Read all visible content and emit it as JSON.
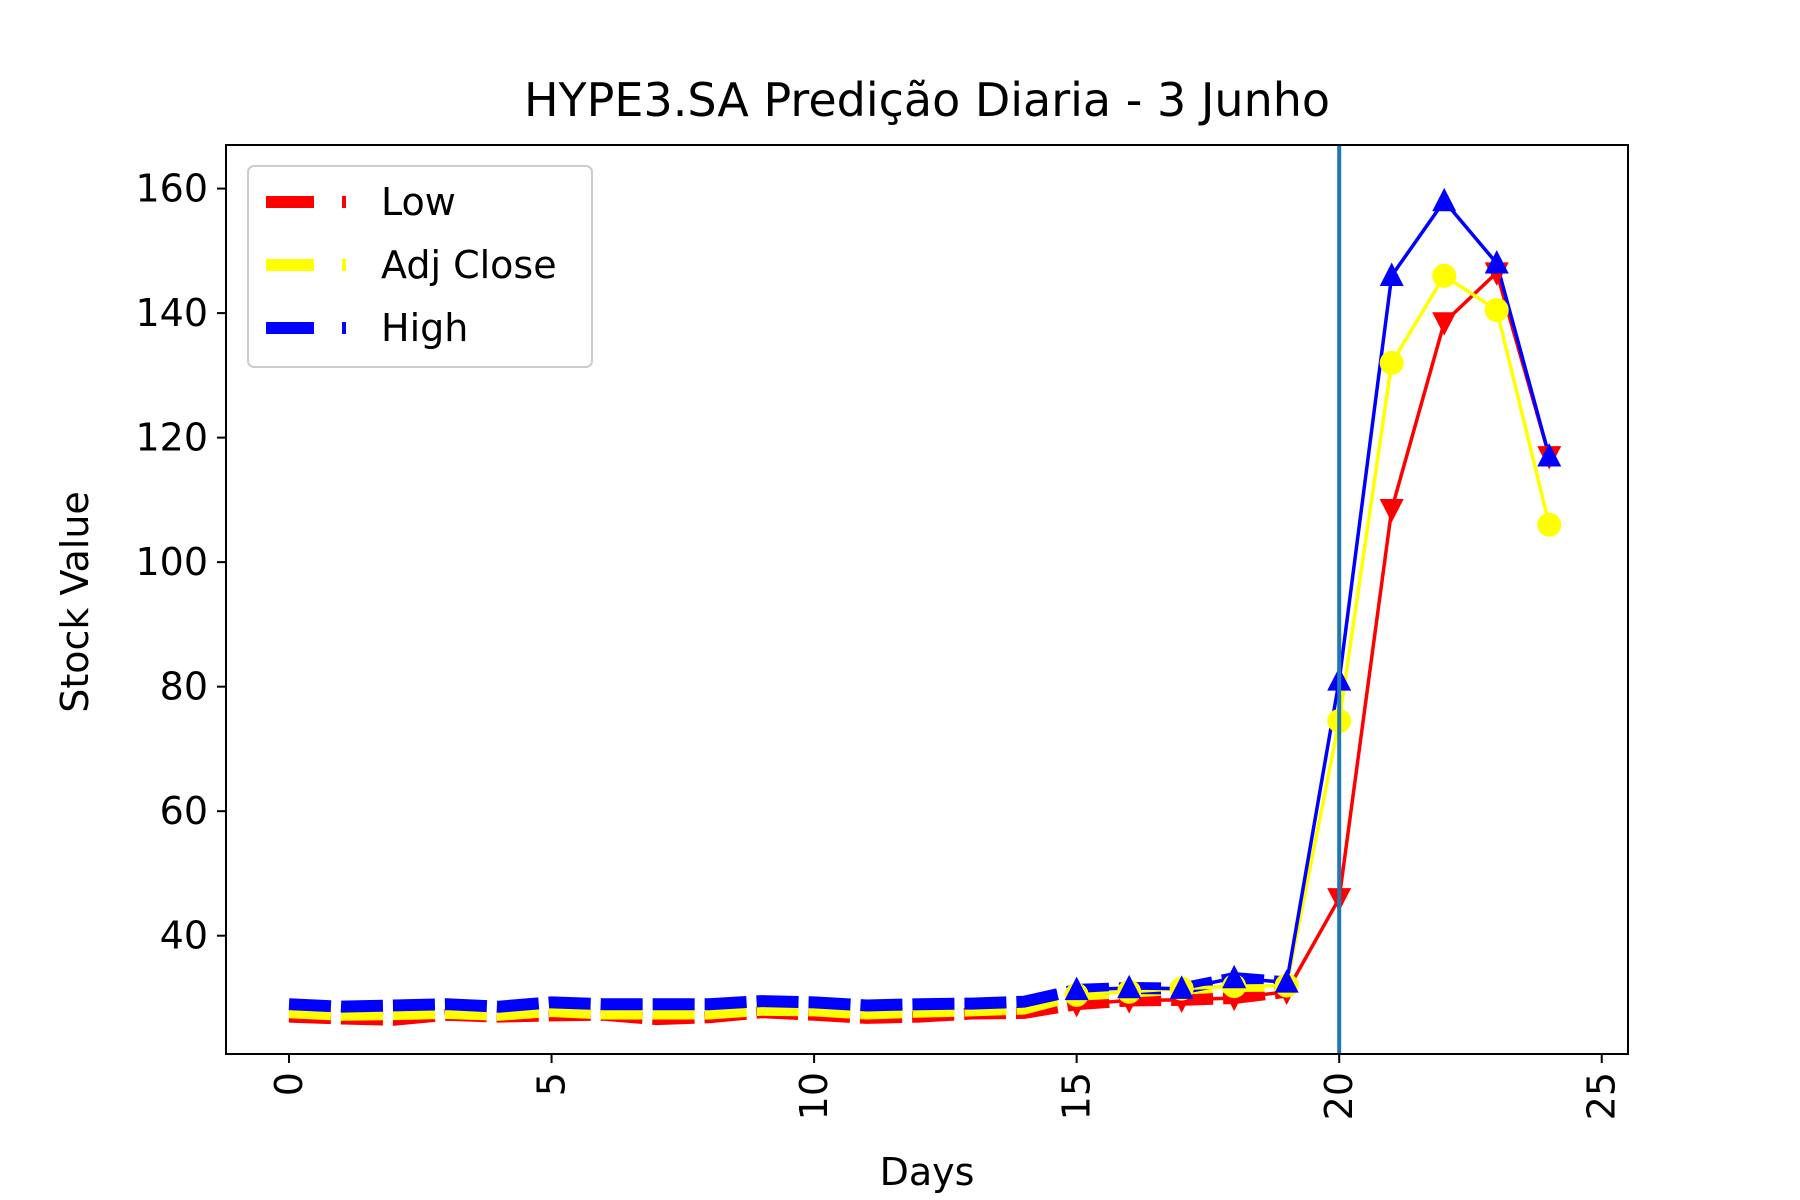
{
  "chart_data": {
    "type": "line",
    "title": "HYPE3.SA Predição Diaria - 3 Junho",
    "xlabel": "Days",
    "ylabel": "Stock Value",
    "xlim": [
      -1.2,
      25.5
    ],
    "ylim": [
      21,
      167
    ],
    "xticks": [
      0,
      5,
      10,
      15,
      20,
      25
    ],
    "yticks": [
      40,
      60,
      80,
      100,
      120,
      140,
      160
    ],
    "grid": false,
    "legend_position": "top-left",
    "vertical_line": {
      "x": 20,
      "color": "#1f77b4"
    },
    "series": [
      {
        "name": "Low",
        "color": "#ff0000",
        "historical": {
          "x": [
            0,
            1,
            2,
            3,
            4,
            5,
            6,
            7,
            8,
            9,
            10,
            11,
            12,
            13,
            14,
            15,
            16,
            17,
            18,
            19
          ],
          "values": [
            27.0,
            26.7,
            26.5,
            27.3,
            27.0,
            27.2,
            27.3,
            26.6,
            26.9,
            27.7,
            27.3,
            26.8,
            27.0,
            27.5,
            27.6,
            29.0,
            29.6,
            29.7,
            30.0,
            31.0
          ]
        },
        "predicted": {
          "x": [
            15,
            16,
            17,
            18,
            19,
            20,
            21,
            22,
            23,
            24
          ],
          "marker": "triangle-down",
          "values": [
            29.0,
            29.6,
            29.7,
            30.0,
            31.0,
            46.0,
            108.5,
            138.5,
            146.5,
            117.0
          ]
        }
      },
      {
        "name": "Adj Close",
        "color": "#ffff00",
        "historical": {
          "x": [
            0,
            1,
            2,
            3,
            4,
            5,
            6,
            7,
            8,
            9,
            10,
            11,
            12,
            13,
            14,
            15,
            16,
            17,
            18,
            19
          ],
          "values": [
            27.7,
            27.3,
            27.4,
            27.6,
            27.3,
            27.9,
            27.5,
            27.5,
            27.5,
            28.1,
            28.0,
            27.5,
            27.8,
            28.0,
            28.3,
            30.5,
            31.0,
            31.5,
            31.9,
            32.0
          ]
        },
        "predicted": {
          "x": [
            15,
            16,
            17,
            18,
            19,
            20,
            21,
            22,
            23,
            24
          ],
          "marker": "circle",
          "values": [
            30.5,
            31.0,
            31.5,
            31.9,
            32.0,
            74.5,
            132.0,
            146.0,
            140.5,
            106.0
          ]
        }
      },
      {
        "name": "High",
        "color": "#0000ff",
        "historical": {
          "x": [
            0,
            1,
            2,
            3,
            4,
            5,
            6,
            7,
            8,
            9,
            10,
            11,
            12,
            13,
            14,
            15,
            16,
            17,
            18,
            19
          ],
          "values": [
            29.0,
            28.6,
            28.8,
            29.0,
            28.6,
            29.3,
            29.0,
            29.0,
            29.0,
            29.5,
            29.3,
            28.8,
            29.0,
            29.1,
            29.4,
            31.3,
            31.6,
            31.5,
            33.2,
            32.5
          ]
        },
        "predicted": {
          "x": [
            15,
            16,
            17,
            18,
            19,
            20,
            21,
            22,
            23,
            24
          ],
          "marker": "triangle-up",
          "values": [
            31.3,
            31.6,
            31.5,
            33.2,
            32.5,
            81.0,
            146.0,
            158.0,
            148.0,
            117.0
          ]
        }
      }
    ]
  }
}
